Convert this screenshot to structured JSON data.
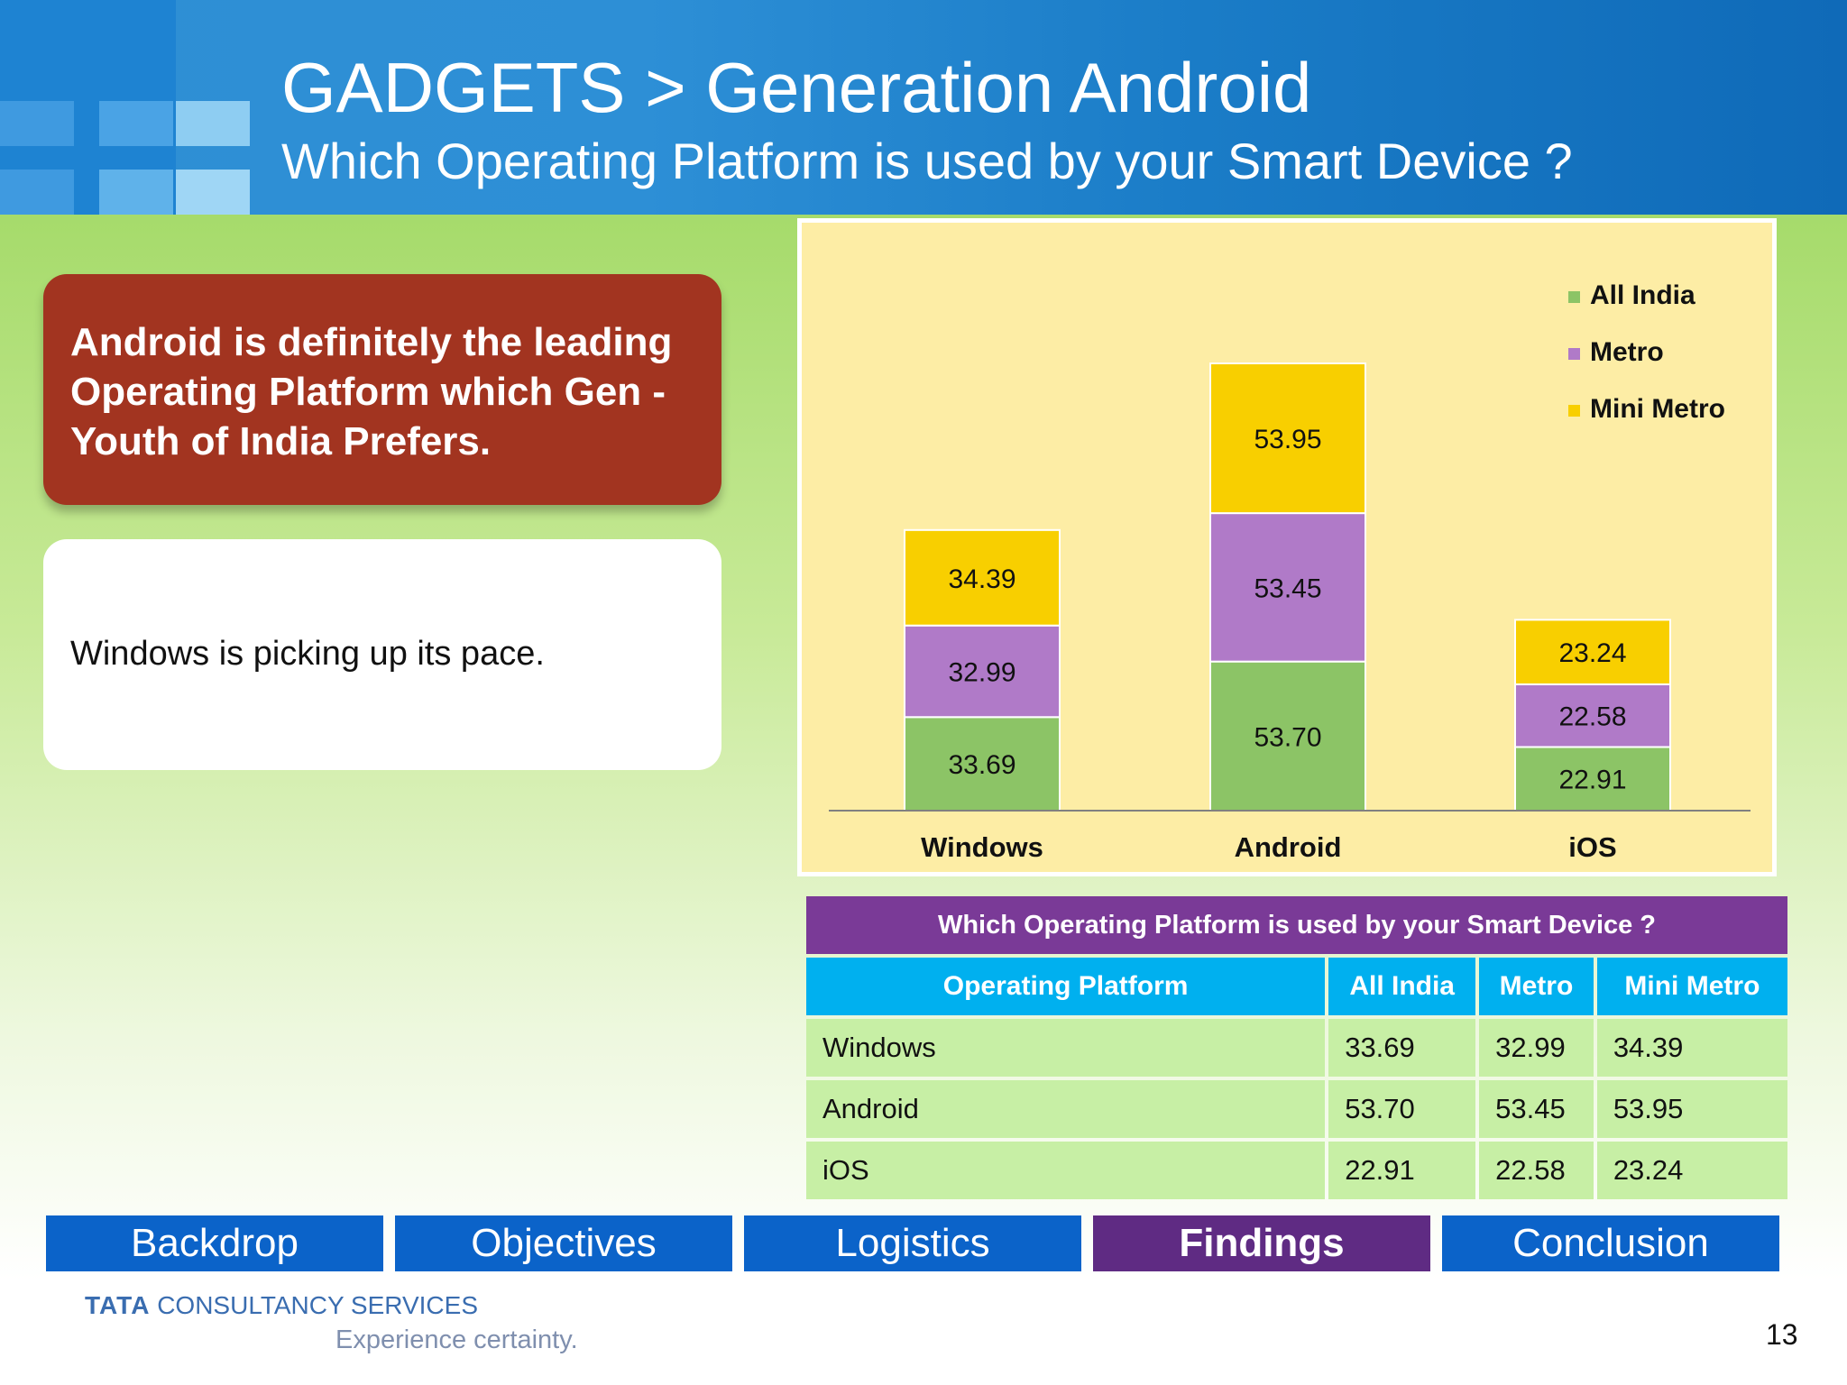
{
  "header": {
    "title": "GADGETS > Generation Android",
    "subtitle": "Which Operating Platform is used by  your Smart Device ?"
  },
  "callout": {
    "text": "Android is definitely the leading Operating Platform which Gen - Youth of India Prefers."
  },
  "note": {
    "text": "Windows is picking up its pace."
  },
  "chart_data": {
    "type": "bar",
    "stacked": true,
    "categories": [
      "Windows",
      "Android",
      "iOS"
    ],
    "series": [
      {
        "name": "All India",
        "values": [
          33.69,
          53.7,
          22.91
        ],
        "labels": [
          "33.69",
          "53.70",
          "22.91"
        ],
        "color": "#8cc466"
      },
      {
        "name": "Metro",
        "values": [
          32.99,
          53.45,
          22.58
        ],
        "labels": [
          "32.99",
          "53.45",
          "22.58"
        ],
        "color": "#b07ac8"
      },
      {
        "name": "Mini Metro",
        "values": [
          34.39,
          53.95,
          23.24
        ],
        "labels": [
          "34.39",
          "53.95",
          "23.24"
        ],
        "color": "#f8cf00"
      }
    ],
    "title": "",
    "xlabel": "",
    "ylabel": "",
    "ylim": [
      0,
      165
    ],
    "legend": "top-right",
    "grid": false,
    "axis_color": "#808080"
  },
  "table": {
    "title": "Which Operating Platform is used by your Smart Device ?",
    "headers": [
      "Operating Platform",
      "All India",
      "Metro",
      "Mini Metro"
    ],
    "rows": [
      [
        "Windows",
        "33.69",
        "32.99",
        "34.39"
      ],
      [
        "Android",
        "53.70",
        "53.45",
        "53.95"
      ],
      [
        "iOS",
        "22.91",
        "22.58",
        "23.24"
      ]
    ]
  },
  "nav": {
    "items": [
      {
        "label": "Backdrop",
        "active": false
      },
      {
        "label": "Objectives",
        "active": false
      },
      {
        "label": "Logistics",
        "active": false
      },
      {
        "label": "Findings",
        "active": true
      },
      {
        "label": "Conclusion",
        "active": false
      }
    ]
  },
  "footer": {
    "brand_bold": "TATA",
    "brand_rest": "CONSULTANCY SERVICES",
    "tagline": "Experience certainty.",
    "page_number": "13"
  },
  "colors": {
    "header_blue": "#1a7cc7",
    "callout_red": "#a23420",
    "nav_blue": "#0b63c9",
    "nav_active": "#5f2b83",
    "table_title": "#7a3a97",
    "table_head": "#00b0ef",
    "table_row": "#c7efa5"
  }
}
